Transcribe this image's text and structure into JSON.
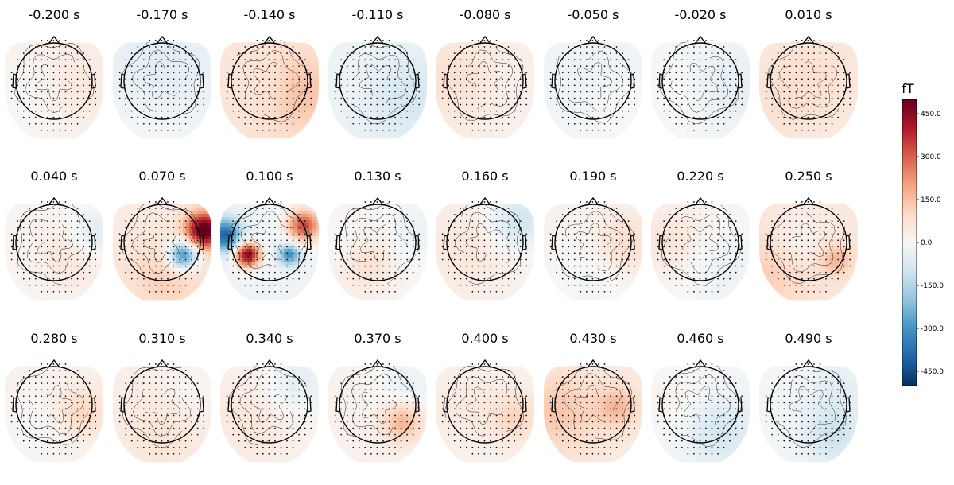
{
  "chart_data": {
    "type": "heatmap",
    "subtype": "topomap-grid",
    "unit": "fT",
    "colormap": "RdBu_r",
    "vmin": -500,
    "vmax": 500,
    "colorbar_ticks": [
      "-450.0",
      "-300.0",
      "-150.0",
      "0.0",
      "150.0",
      "300.0",
      "450.0"
    ],
    "rows": 3,
    "cols": 8,
    "panels": [
      {
        "time": "-0.200 s",
        "amplitude": 20,
        "features": [
          [
            0.7,
            0.45,
            0.5,
            40
          ],
          [
            0.3,
            0.6,
            0.5,
            -30
          ]
        ]
      },
      {
        "time": "-0.170 s",
        "amplitude": -20,
        "features": [
          [
            0.5,
            0.3,
            0.6,
            -40
          ],
          [
            0.4,
            0.8,
            0.5,
            20
          ]
        ]
      },
      {
        "time": "-0.140 s",
        "amplitude": 60,
        "features": [
          [
            0.8,
            0.55,
            0.5,
            90
          ],
          [
            0.5,
            0.5,
            0.3,
            -30
          ]
        ]
      },
      {
        "time": "-0.110 s",
        "amplitude": -30,
        "features": [
          [
            0.8,
            0.6,
            0.5,
            -60
          ],
          [
            0.4,
            0.4,
            0.5,
            10
          ]
        ]
      },
      {
        "time": "-0.080 s",
        "amplitude": 30,
        "features": [
          [
            0.2,
            0.4,
            0.5,
            50
          ],
          [
            0.7,
            0.6,
            0.5,
            -10
          ]
        ]
      },
      {
        "time": "-0.050 s",
        "amplitude": -10,
        "features": [
          [
            0.5,
            0.3,
            0.6,
            -20
          ],
          [
            0.8,
            0.7,
            0.4,
            20
          ]
        ]
      },
      {
        "time": "-0.020 s",
        "amplitude": -10,
        "features": [
          [
            0.8,
            0.5,
            0.5,
            -40
          ],
          [
            0.3,
            0.7,
            0.5,
            20
          ]
        ]
      },
      {
        "time": "0.010 s",
        "amplitude": 30,
        "features": [
          [
            0.5,
            0.4,
            0.7,
            50
          ],
          [
            0.2,
            0.7,
            0.4,
            20
          ]
        ]
      },
      {
        "time": "0.040 s",
        "amplitude": 10,
        "features": [
          [
            0.9,
            0.35,
            0.3,
            -90
          ],
          [
            0.7,
            0.55,
            0.4,
            60
          ]
        ]
      },
      {
        "time": "0.070 s",
        "amplitude": 40,
        "features": [
          [
            0.93,
            0.3,
            0.22,
            500
          ],
          [
            0.72,
            0.55,
            0.18,
            -380
          ],
          [
            0.55,
            0.8,
            0.5,
            80
          ]
        ]
      },
      {
        "time": "0.100 s",
        "amplitude": -20,
        "features": [
          [
            0.05,
            0.35,
            0.2,
            -380
          ],
          [
            0.28,
            0.55,
            0.15,
            480
          ],
          [
            0.7,
            0.55,
            0.13,
            -300
          ],
          [
            0.85,
            0.25,
            0.2,
            350
          ]
        ]
      },
      {
        "time": "0.130 s",
        "amplitude": 10,
        "features": [
          [
            0.2,
            0.5,
            0.3,
            -50
          ],
          [
            0.35,
            0.6,
            0.35,
            90
          ],
          [
            0.85,
            0.3,
            0.4,
            -40
          ]
        ]
      },
      {
        "time": "0.160 s",
        "amplitude": 20,
        "features": [
          [
            0.85,
            0.2,
            0.35,
            -120
          ],
          [
            0.3,
            0.5,
            0.5,
            40
          ]
        ]
      },
      {
        "time": "0.190 s",
        "amplitude": 20,
        "features": [
          [
            0.8,
            0.45,
            0.35,
            80
          ],
          [
            0.5,
            0.75,
            0.5,
            -40
          ]
        ]
      },
      {
        "time": "0.220 s",
        "amplitude": 10,
        "features": [
          [
            0.2,
            0.4,
            0.4,
            60
          ],
          [
            0.7,
            0.7,
            0.5,
            -40
          ]
        ]
      },
      {
        "time": "0.250 s",
        "amplitude": 50,
        "features": [
          [
            0.4,
            0.45,
            0.35,
            -60
          ],
          [
            0.78,
            0.6,
            0.2,
            120
          ],
          [
            0.15,
            0.7,
            0.5,
            80
          ]
        ]
      },
      {
        "time": "0.280 s",
        "amplitude": 20,
        "features": [
          [
            0.78,
            0.5,
            0.3,
            90
          ],
          [
            0.3,
            0.7,
            0.5,
            -20
          ]
        ]
      },
      {
        "time": "0.310 s",
        "amplitude": 30,
        "features": [
          [
            0.5,
            0.7,
            0.5,
            40
          ],
          [
            0.8,
            0.3,
            0.4,
            -30
          ]
        ]
      },
      {
        "time": "0.340 s",
        "amplitude": 20,
        "features": [
          [
            0.8,
            0.2,
            0.4,
            -70
          ],
          [
            0.3,
            0.6,
            0.5,
            40
          ]
        ]
      },
      {
        "time": "0.370 s",
        "amplitude": 20,
        "features": [
          [
            0.75,
            0.6,
            0.25,
            160
          ],
          [
            0.8,
            0.25,
            0.35,
            -60
          ]
        ]
      },
      {
        "time": "0.400 s",
        "amplitude": 20,
        "features": [
          [
            0.8,
            0.55,
            0.3,
            90
          ],
          [
            0.3,
            0.45,
            0.4,
            30
          ]
        ]
      },
      {
        "time": "0.430 s",
        "amplitude": 40,
        "features": [
          [
            0.15,
            0.5,
            0.5,
            100
          ],
          [
            0.75,
            0.45,
            0.25,
            120
          ]
        ]
      },
      {
        "time": "0.460 s",
        "amplitude": -10,
        "features": [
          [
            0.7,
            0.7,
            0.4,
            -80
          ],
          [
            0.2,
            0.4,
            0.4,
            30
          ]
        ]
      },
      {
        "time": "0.490 s",
        "amplitude": -10,
        "features": [
          [
            0.75,
            0.75,
            0.35,
            -90
          ],
          [
            0.8,
            0.3,
            0.4,
            -40
          ]
        ]
      }
    ]
  }
}
